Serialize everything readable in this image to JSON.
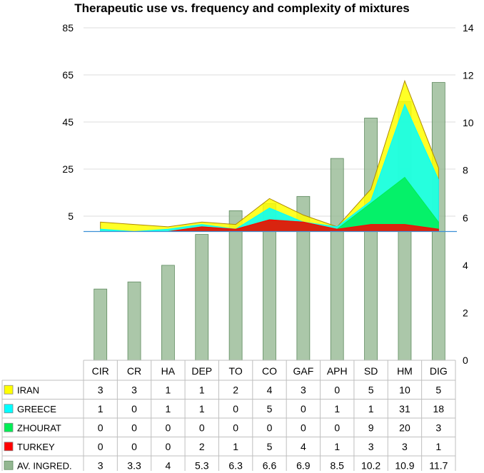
{
  "chart_data": {
    "type": "bar+area",
    "title": "Therapeutic use vs. frequency and complexity of mixtures",
    "categories": [
      "CIR",
      "CR",
      "HA",
      "DEP",
      "TO",
      "CO",
      "GAF",
      "APH",
      "SD",
      "HM",
      "DIG"
    ],
    "left_axis": {
      "ticks": [
        85,
        65,
        45,
        25,
        5
      ]
    },
    "right_axis": {
      "ylim": [
        0,
        14
      ],
      "ticks": [
        14,
        12,
        10,
        8,
        6,
        4,
        2,
        0
      ]
    },
    "series": [
      {
        "name": "IRAN",
        "type": "stacked-area",
        "axis": "left",
        "color": "#ffff00",
        "values": [
          3,
          3,
          1,
          1,
          2,
          4,
          3,
          0,
          5,
          10,
          5
        ]
      },
      {
        "name": "GREECE",
        "type": "stacked-area",
        "axis": "left",
        "color": "#00ffff",
        "values": [
          1,
          0,
          1,
          1,
          0,
          5,
          0,
          1,
          1,
          31,
          18
        ]
      },
      {
        "name": "ZHOURAT",
        "type": "stacked-area",
        "axis": "left",
        "color": "#00ee55",
        "values": [
          0,
          0,
          0,
          0,
          0,
          0,
          0,
          0,
          9,
          20,
          3
        ]
      },
      {
        "name": "TURKEY",
        "type": "stacked-area",
        "axis": "left",
        "color": "#ff0000",
        "values": [
          0,
          0,
          0,
          2,
          1,
          5,
          4,
          1,
          3,
          3,
          1
        ]
      },
      {
        "name": "AV. INGRED.",
        "type": "bar",
        "axis": "right",
        "color": "#93b791",
        "values": [
          3,
          3.3,
          4,
          5.3,
          6.3,
          6.6,
          6.9,
          8.5,
          10.2,
          10.9,
          11.7
        ]
      }
    ],
    "table_rows": [
      {
        "name": "IRAN",
        "cells": [
          "3",
          "3",
          "1",
          "1",
          "2",
          "4",
          "3",
          "0",
          "5",
          "10",
          "5"
        ]
      },
      {
        "name": "GREECE",
        "cells": [
          "1",
          "0",
          "1",
          "1",
          "0",
          "5",
          "0",
          "1",
          "1",
          "31",
          "18"
        ]
      },
      {
        "name": "ZHOURAT",
        "cells": [
          "0",
          "0",
          "0",
          "0",
          "0",
          "0",
          "0",
          "0",
          "9",
          "20",
          "3"
        ]
      },
      {
        "name": "TURKEY",
        "cells": [
          "0",
          "0",
          "0",
          "2",
          "1",
          "5",
          "4",
          "1",
          "3",
          "3",
          "1"
        ]
      },
      {
        "name": "AV. INGRED.",
        "cells": [
          "3",
          "3.3",
          "4",
          "5.3",
          "6.3",
          "6.6",
          "6.9",
          "8.5",
          "10.2",
          "10.9",
          "11.7"
        ]
      }
    ]
  }
}
